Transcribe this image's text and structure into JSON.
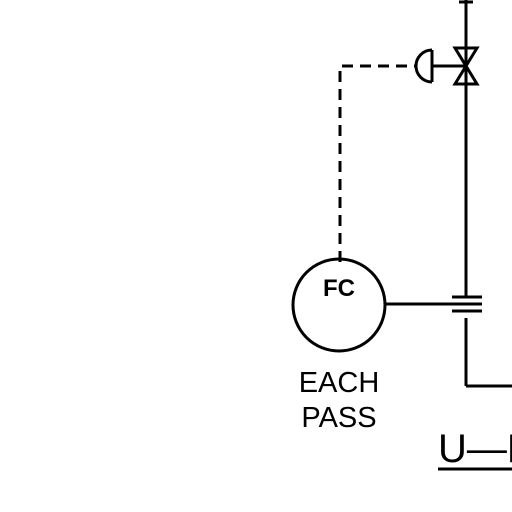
{
  "diagram": {
    "instrument": {
      "tag": "FC",
      "note_line1": "EACH",
      "note_line2": "PASS"
    },
    "cut_off_label": "U—P"
  },
  "colors": {
    "ink": "#000000",
    "background": "#ffffff"
  }
}
